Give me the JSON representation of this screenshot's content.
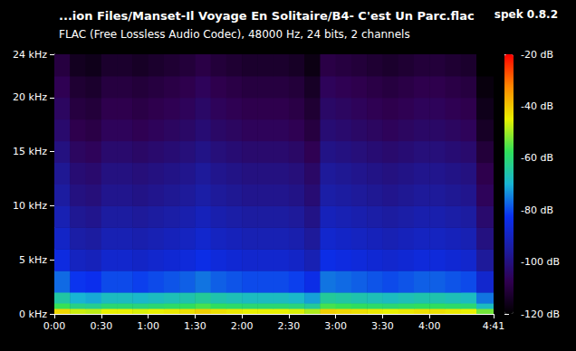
{
  "chart_data": {
    "type": "heatmap",
    "title": "...ion Files/Manset-Il Voyage En Solitaire/B4- C'est Un Parc.flac",
    "subtitle": "FLAC (Free Lossless Audio Codec), 48000 Hz, 24 bits, 2 channels",
    "annotation": "spek 0.8.2",
    "grid": false,
    "xlim": [
      0,
      281
    ],
    "xticks": [
      {
        "value": 0,
        "label": "0:00"
      },
      {
        "value": 30,
        "label": "0:30"
      },
      {
        "value": 60,
        "label": "1:00"
      },
      {
        "value": 90,
        "label": "1:30"
      },
      {
        "value": 120,
        "label": "2:00"
      },
      {
        "value": 150,
        "label": "2:30"
      },
      {
        "value": 180,
        "label": "3:00"
      },
      {
        "value": 210,
        "label": "3:30"
      },
      {
        "value": 240,
        "label": "4:00"
      },
      {
        "value": 281,
        "label": "4:41"
      }
    ],
    "ylim": [
      0,
      24
    ],
    "yticks": [
      {
        "value": 0,
        "label": "0 kHz"
      },
      {
        "value": 5,
        "label": "5 kHz"
      },
      {
        "value": 10,
        "label": "10 kHz"
      },
      {
        "value": 15,
        "label": "15 kHz"
      },
      {
        "value": 20,
        "label": "20 kHz"
      },
      {
        "value": 24,
        "label": "24 kHz"
      }
    ],
    "time_edges": [
      0,
      10,
      20,
      30,
      40,
      50,
      60,
      70,
      80,
      90,
      100,
      110,
      120,
      130,
      140,
      150,
      160,
      170,
      180,
      190,
      200,
      210,
      220,
      230,
      240,
      250,
      260,
      270,
      281
    ],
    "frequency_edges": [
      0,
      0.5,
      1,
      2,
      4,
      6,
      8,
      10,
      12,
      14,
      16,
      18,
      20,
      22,
      24
    ],
    "cells": [
      [
        -42,
        -47,
        -48,
        -45,
        -45,
        -46,
        -45,
        -44,
        -43,
        -41,
        -43,
        -44,
        -45,
        -45,
        -45,
        -46,
        -49,
        -41,
        -42,
        -43,
        -44,
        -45,
        -44,
        -43,
        -43,
        -44,
        -45,
        -53
      ],
      [
        -57,
        -62,
        -63,
        -60,
        -60,
        -61,
        -60,
        -59,
        -58,
        -56,
        -58,
        -59,
        -60,
        -60,
        -60,
        -61,
        -64,
        -56,
        -57,
        -58,
        -59,
        -60,
        -59,
        -58,
        -58,
        -59,
        -60,
        -68
      ],
      [
        -65,
        -70,
        -71,
        -68,
        -68,
        -69,
        -68,
        -67,
        -66,
        -64,
        -66,
        -67,
        -68,
        -68,
        -68,
        -69,
        -72,
        -64,
        -65,
        -66,
        -67,
        -68,
        -67,
        -66,
        -66,
        -67,
        -68,
        -76
      ],
      [
        -77,
        -82,
        -83,
        -80,
        -80,
        -81,
        -80,
        -79,
        -78,
        -76,
        -78,
        -79,
        -80,
        -80,
        -80,
        -81,
        -84,
        -76,
        -77,
        -78,
        -79,
        -80,
        -79,
        -78,
        -78,
        -79,
        -80,
        -88
      ],
      [
        -85,
        -90,
        -91,
        -88,
        -88,
        -89,
        -88,
        -87,
        -86,
        -84,
        -86,
        -87,
        -88,
        -88,
        -88,
        -89,
        -92,
        -84,
        -85,
        -86,
        -87,
        -88,
        -87,
        -86,
        -86,
        -87,
        -88,
        -96
      ],
      [
        -89,
        -94,
        -95,
        -92,
        -92,
        -93,
        -92,
        -91,
        -90,
        -88,
        -90,
        -91,
        -92,
        -92,
        -92,
        -93,
        -96,
        -88,
        -89,
        -90,
        -91,
        -92,
        -91,
        -90,
        -90,
        -91,
        -92,
        -100
      ],
      [
        -92,
        -97,
        -98,
        -95,
        -95,
        -96,
        -95,
        -94,
        -93,
        -91,
        -93,
        -94,
        -95,
        -95,
        -95,
        -96,
        -99,
        -91,
        -92,
        -93,
        -94,
        -95,
        -94,
        -93,
        -93,
        -94,
        -95,
        -103
      ],
      [
        -95,
        -100,
        -101,
        -98,
        -98,
        -99,
        -98,
        -97,
        -96,
        -94,
        -96,
        -97,
        -98,
        -98,
        -98,
        -99,
        -102,
        -94,
        -95,
        -96,
        -97,
        -98,
        -97,
        -96,
        -96,
        -97,
        -98,
        -106
      ],
      [
        -97,
        -102,
        -103,
        -100,
        -100,
        -101,
        -100,
        -99,
        -98,
        -96,
        -98,
        -99,
        -100,
        -100,
        -100,
        -101,
        -104,
        -96,
        -97,
        -98,
        -99,
        -100,
        -99,
        -98,
        -98,
        -99,
        -100,
        -108
      ],
      [
        -100,
        -105,
        -106,
        -103,
        -103,
        -104,
        -103,
        -102,
        -101,
        -99,
        -101,
        -102,
        -103,
        -103,
        -103,
        -104,
        -107,
        -99,
        -100,
        -101,
        -102,
        -103,
        -102,
        -101,
        -101,
        -102,
        -103,
        -111
      ],
      [
        -103,
        -108,
        -109,
        -106,
        -106,
        -107,
        -106,
        -105,
        -104,
        -102,
        -104,
        -105,
        -106,
        -106,
        -106,
        -107,
        -110,
        -102,
        -103,
        -104,
        -105,
        -106,
        -105,
        -104,
        -104,
        -105,
        -106,
        -114
      ],
      [
        -105,
        -110,
        -111,
        -108,
        -108,
        -109,
        -108,
        -107,
        -106,
        -104,
        -106,
        -107,
        -108,
        -108,
        -108,
        -109,
        -112,
        -104,
        -105,
        -106,
        -107,
        -108,
        -107,
        -106,
        -106,
        -107,
        -108,
        -116
      ],
      [
        -107,
        -112,
        -113,
        -110,
        -110,
        -111,
        -110,
        -109,
        -108,
        -106,
        -108,
        -109,
        -110,
        -110,
        -110,
        -111,
        -114,
        -106,
        -107,
        -108,
        -109,
        -110,
        -109,
        -108,
        -108,
        -109,
        -110,
        -118
      ],
      [
        -110,
        -115,
        -116,
        -113,
        -113,
        -114,
        -113,
        -112,
        -111,
        -109,
        -111,
        -112,
        -113,
        -113,
        -113,
        -114,
        -117,
        -109,
        -110,
        -111,
        -112,
        -113,
        -112,
        -111,
        -111,
        -112,
        -113,
        -120
      ]
    ],
    "colorbar": {
      "range": [
        -120,
        -20
      ],
      "ticks": [
        {
          "value": -20,
          "label": "-20 dB"
        },
        {
          "value": -40,
          "label": "-40 dB"
        },
        {
          "value": -60,
          "label": "-60 dB"
        },
        {
          "value": -80,
          "label": "-80 dB"
        },
        {
          "value": -100,
          "label": "-100 dB"
        },
        {
          "value": -120,
          "label": "-120 dB"
        }
      ],
      "colors": [
        "#000000",
        "#300050",
        "#1c1ca0",
        "#0a2ff0",
        "#18b4d4",
        "#2fe05a",
        "#e8f000",
        "#ff8800",
        "#ff0000"
      ]
    }
  }
}
